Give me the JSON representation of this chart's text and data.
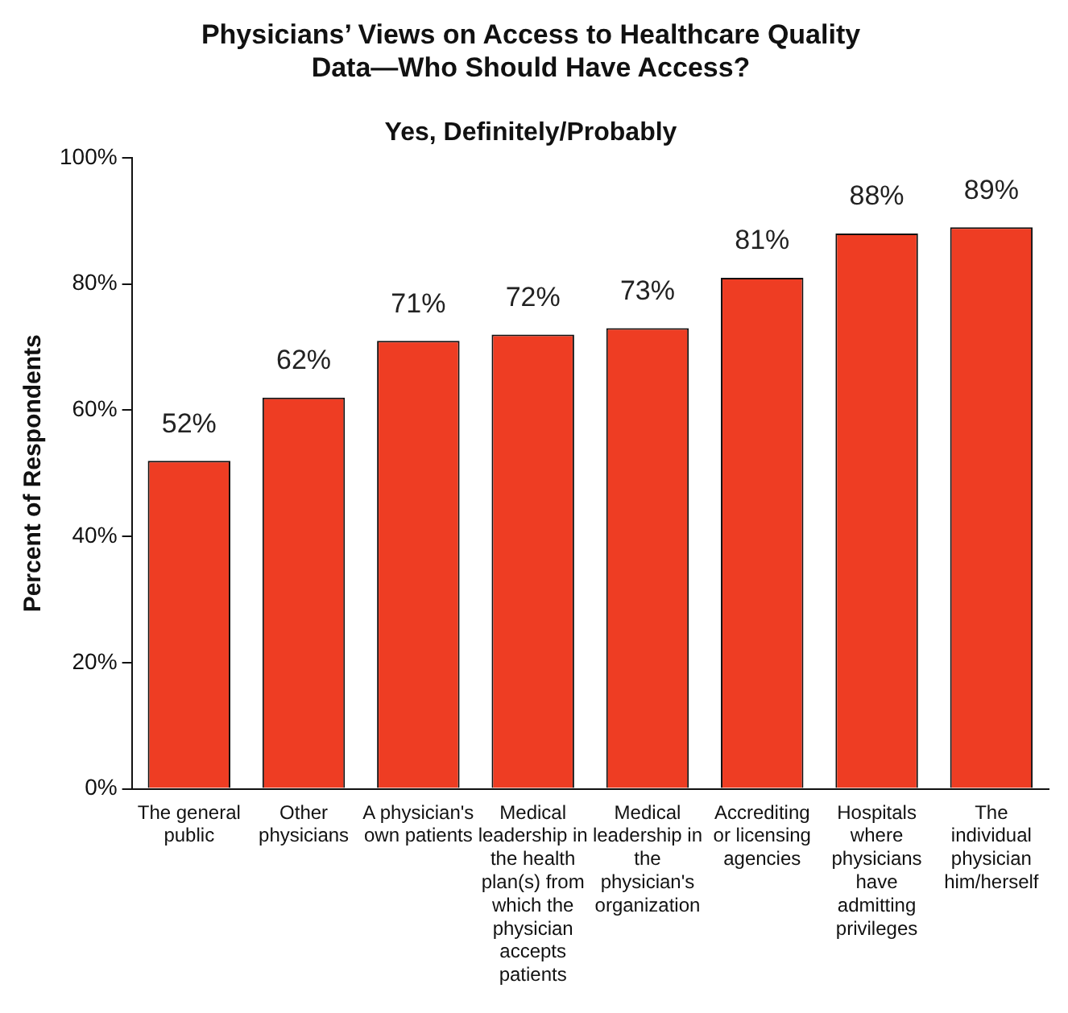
{
  "chart_data": {
    "type": "bar",
    "title": "Physicians’ Views on Access to Healthcare Quality Data—Who Should Have Access?",
    "subtitle": "Yes, Definitely/Probably",
    "ylabel": "Percent of Respondents",
    "categories": [
      "The general public",
      "Other physicians",
      "A physician's own patients",
      "Medical leadership in the health plan(s) from which the physician accepts patients",
      "Medical leadership in the physician's organization",
      "Accrediting or licensing agencies",
      "Hospitals where physicians have admitting privileges",
      "The individual physician him/herself"
    ],
    "values": [
      52,
      62,
      71,
      72,
      73,
      81,
      88,
      89
    ],
    "value_labels": [
      "52%",
      "62%",
      "71%",
      "72%",
      "73%",
      "81%",
      "88%",
      "89%"
    ],
    "color": "#ee3d23",
    "ylim": [
      0,
      100
    ],
    "yticks": [
      {
        "value": 0,
        "label": "0%"
      },
      {
        "value": 20,
        "label": "20%"
      },
      {
        "value": 40,
        "label": "40%"
      },
      {
        "value": 60,
        "label": "60%"
      },
      {
        "value": 80,
        "label": "80%"
      },
      {
        "value": 100,
        "label": "100%"
      }
    ],
    "grid": false,
    "legend": false
  }
}
